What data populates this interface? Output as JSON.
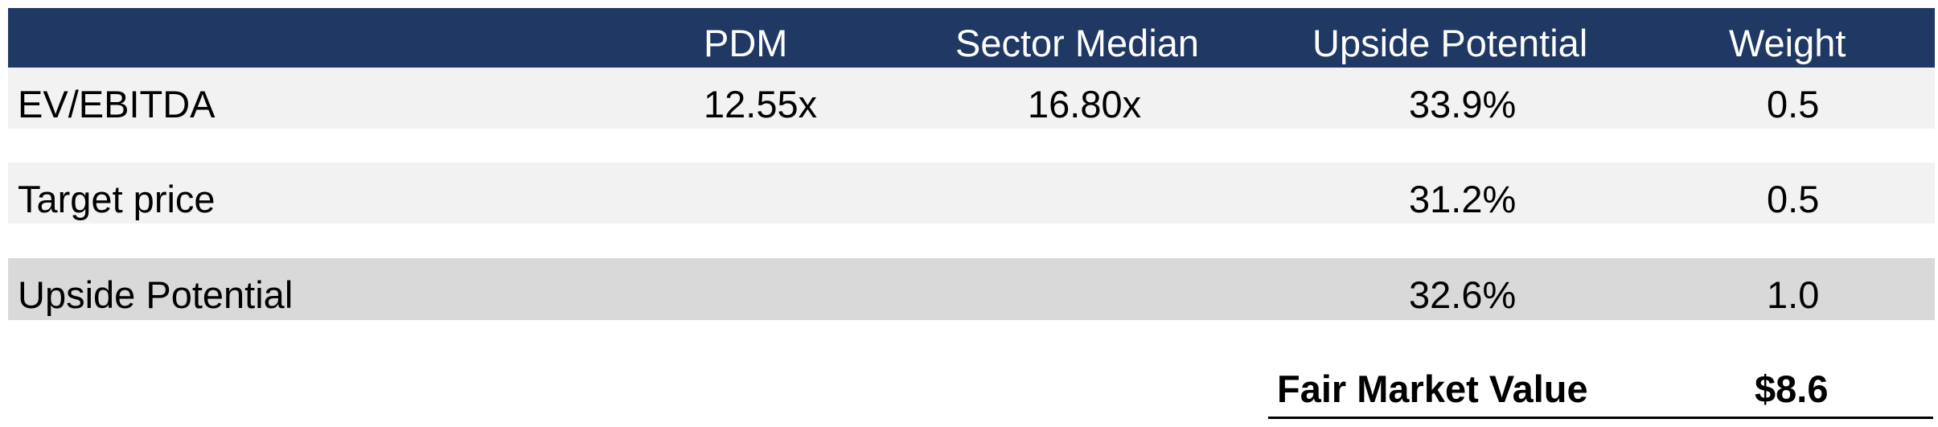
{
  "columns": {
    "pdm": "PDM",
    "sector_median": "Sector Median",
    "upside_potential": "Upside Potential",
    "weight": "Weight"
  },
  "rows": [
    {
      "label": "EV/EBITDA",
      "pdm": "12.55x",
      "sector_median": "16.80x",
      "upside": "33.9%",
      "weight": "0.5"
    },
    {
      "label": "Target price",
      "pdm": "",
      "sector_median": "",
      "upside": "31.2%",
      "weight": "0.5"
    },
    {
      "label": "Upside Potential",
      "pdm": "",
      "sector_median": "",
      "upside": "32.6%",
      "weight": "1.0"
    }
  ],
  "summary": {
    "label": "Fair Market Value",
    "value": "$8.6"
  },
  "colors": {
    "header_bg": "#203864",
    "row_light": "#f2f2f2",
    "row_total": "#d9d9d9"
  }
}
